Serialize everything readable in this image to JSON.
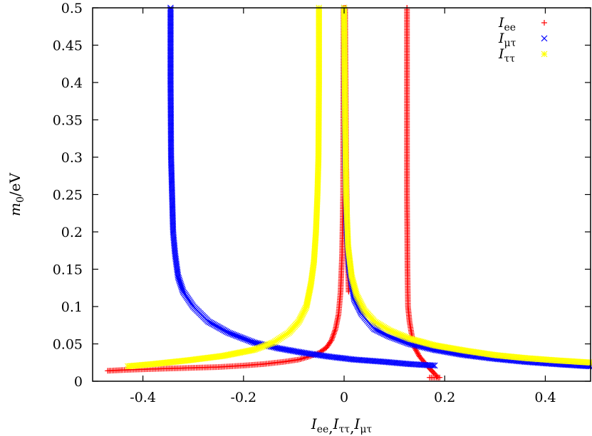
{
  "chart_data": {
    "type": "scatter",
    "title": "",
    "xlabel": {
      "parts": [
        [
          "I",
          "ee"
        ],
        [
          "I",
          "ττ"
        ],
        [
          "I",
          "μτ"
        ]
      ],
      "sep": ","
    },
    "ylabel": {
      "italic": "m",
      "sub": "0",
      "rest": "/eV"
    },
    "xlim": [
      -0.5,
      0.49
    ],
    "ylim": [
      0,
      0.5
    ],
    "xticks": [
      {
        "value": -0.4,
        "label": "-0.4"
      },
      {
        "value": -0.2,
        "label": "-0.2"
      },
      {
        "value": 0,
        "label": "0"
      },
      {
        "value": 0.2,
        "label": "0.2"
      },
      {
        "value": 0.4,
        "label": "0.4"
      }
    ],
    "yticks": [
      {
        "value": 0,
        "label": "0"
      },
      {
        "value": 0.05,
        "label": "0.05"
      },
      {
        "value": 0.1,
        "label": "0.1"
      },
      {
        "value": 0.15,
        "label": "0.15"
      },
      {
        "value": 0.2,
        "label": "0.2"
      },
      {
        "value": 0.25,
        "label": "0.25"
      },
      {
        "value": 0.3,
        "label": "0.3"
      },
      {
        "value": 0.35,
        "label": "0.35"
      },
      {
        "value": 0.4,
        "label": "0.4"
      },
      {
        "value": 0.45,
        "label": "0.45"
      },
      {
        "value": 0.5,
        "label": "0.5"
      }
    ],
    "grid": false,
    "legend_position": "top-right",
    "series": [
      {
        "name": {
          "main": "I",
          "sub": "ee"
        },
        "marker": "plus",
        "color": "#ff0000",
        "branches": [
          {
            "x": [
              -0.47,
              -0.44,
              -0.4,
              -0.35,
              -0.3,
              -0.25,
              -0.2,
              -0.16,
              -0.12,
              -0.09,
              -0.07,
              -0.05,
              -0.035,
              -0.025,
              -0.017,
              -0.011,
              -0.007,
              -0.004,
              -0.002,
              -0.001
            ],
            "y": [
              0.014,
              0.015,
              0.016,
              0.017,
              0.018,
              0.019,
              0.021,
              0.023,
              0.026,
              0.029,
              0.033,
              0.038,
              0.045,
              0.055,
              0.07,
              0.09,
              0.12,
              0.17,
              0.25,
              0.5
            ]
          },
          {
            "x": [
              0.002,
              0.003,
              0.004,
              0.006,
              0.009
            ],
            "y": [
              0.5,
              0.4,
              0.3,
              0.2,
              0.12
            ]
          },
          {
            "x": [
              0.187,
              0.18,
              0.17,
              0.16,
              0.15,
              0.14,
              0.135,
              0.13,
              0.127,
              0.126,
              0.125,
              0.125,
              0.125
            ],
            "y": [
              0.005,
              0.01,
              0.017,
              0.025,
              0.033,
              0.045,
              0.06,
              0.08,
              0.1,
              0.15,
              0.25,
              0.4,
              0.5
            ]
          },
          {
            "x": [
              0.17,
              0.18,
              0.19
            ],
            "y": [
              0.005,
              0.005,
              0.005
            ]
          }
        ]
      },
      {
        "name": {
          "main": "I",
          "sub": "μτ"
        },
        "marker": "cross",
        "color": "#0000ff",
        "branches": [
          {
            "x": [
              -0.345,
              -0.345,
              -0.344,
              -0.342,
              -0.34,
              -0.336,
              -0.33,
              -0.32,
              -0.3,
              -0.27,
              -0.23,
              -0.18,
              -0.13,
              -0.08,
              -0.03,
              0.02,
              0.08,
              0.13,
              0.18
            ],
            "y": [
              0.5,
              0.4,
              0.3,
              0.25,
              0.2,
              0.17,
              0.14,
              0.12,
              0.1,
              0.08,
              0.065,
              0.052,
              0.044,
              0.038,
              0.033,
              0.029,
              0.026,
              0.023,
              0.021
            ]
          },
          {
            "x": [
              0.0,
              0.002,
              0.005,
              0.01,
              0.02,
              0.035,
              0.06,
              0.09,
              0.13,
              0.18,
              0.24,
              0.3,
              0.36,
              0.42,
              0.49
            ],
            "y": [
              0.5,
              0.3,
              0.2,
              0.15,
              0.11,
              0.09,
              0.07,
              0.06,
              0.05,
              0.042,
              0.035,
              0.03,
              0.026,
              0.023,
              0.02
            ]
          }
        ]
      },
      {
        "name": {
          "main": "I",
          "sub": "ττ"
        },
        "marker": "star",
        "color": "#ffff00",
        "branches": [
          {
            "x": [
              -0.05,
              -0.05,
              -0.051,
              -0.053,
              -0.056,
              -0.06,
              -0.066,
              -0.075,
              -0.09,
              -0.11,
              -0.14,
              -0.18,
              -0.24,
              -0.31,
              -0.38,
              -0.43
            ],
            "y": [
              0.5,
              0.4,
              0.3,
              0.25,
              0.2,
              0.16,
              0.13,
              0.1,
              0.08,
              0.065,
              0.052,
              0.042,
              0.034,
              0.028,
              0.023,
              0.02
            ]
          },
          {
            "x": [
              0.0,
              0.002,
              0.004,
              0.008,
              0.015,
              0.025,
              0.04,
              0.06,
              0.09,
              0.13,
              0.18,
              0.24,
              0.3,
              0.36,
              0.42,
              0.49
            ],
            "y": [
              0.5,
              0.35,
              0.25,
              0.18,
              0.14,
              0.115,
              0.095,
              0.08,
              0.068,
              0.057,
              0.048,
              0.041,
              0.035,
              0.031,
              0.028,
              0.025
            ]
          }
        ]
      }
    ]
  }
}
